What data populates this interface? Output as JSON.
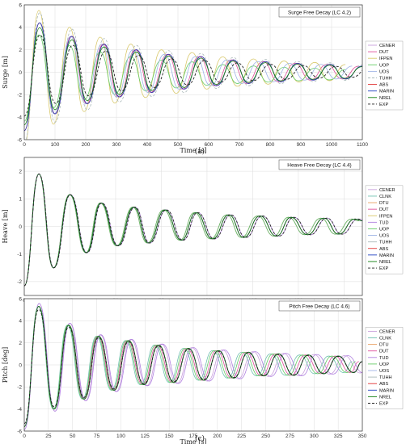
{
  "chart_data": [
    {
      "type": "line",
      "title": "Surge Free Decay (LC 4.2)",
      "xlabel": "Time [s]",
      "ylabel": "Surge [m]",
      "xlim": [
        0,
        1100
      ],
      "ylim": [
        -6,
        6
      ],
      "xticks": [
        "0",
        "100",
        "200",
        "300",
        "400",
        "500",
        "600",
        "700",
        "800",
        "900",
        "1000",
        "1100"
      ],
      "yticks": [
        "-6",
        "-4",
        "-2",
        "0",
        "2",
        "4",
        "6"
      ],
      "caption": "(a)",
      "grid": true,
      "legend_placement": "right",
      "peaks": {
        "x": [
          0,
          50,
          100,
          155,
          205,
          260,
          310,
          365,
          415,
          470,
          520,
          575,
          625,
          680,
          730,
          785,
          835,
          890,
          940,
          995,
          1045,
          1100
        ],
        "y": [
          -5.2,
          4.4,
          -3.7,
          3.2,
          -2.8,
          2.5,
          -2.2,
          2.0,
          -1.8,
          1.6,
          -1.5,
          1.4,
          -1.2,
          1.1,
          -1.0,
          0.95,
          -0.85,
          0.8,
          -0.7,
          0.7,
          -0.6,
          0.55
        ]
      },
      "series": [
        {
          "name": "CENER",
          "color": "#c9a0dc",
          "dash": "solid",
          "amp": 1.0,
          "period": 1.0,
          "offset": 0.0
        },
        {
          "name": "DUT",
          "color": "#e0509a",
          "dash": "solid",
          "amp": 1.0,
          "period": 0.99,
          "offset": 0.0
        },
        {
          "name": "IFPEN",
          "color": "#d8c86a",
          "dash": "solid",
          "amp": 1.25,
          "period": 0.95,
          "offset": 0.0
        },
        {
          "name": "UOP",
          "color": "#66cc66",
          "dash": "solid",
          "amp": 0.8,
          "period": 0.95,
          "offset": -0.2
        },
        {
          "name": "UOS",
          "color": "#9fb4e6",
          "dash": "solid",
          "amp": 1.0,
          "period": 0.97,
          "offset": 0.0
        },
        {
          "name": "TUHH",
          "color": "#a9b8b8",
          "dash": "dashed",
          "amp": 1.2,
          "period": 1.0,
          "offset": 0.0
        },
        {
          "name": "ABS",
          "color": "#e03030",
          "dash": "solid",
          "amp": 1.0,
          "period": 1.0,
          "offset": 0.0
        },
        {
          "name": "MARIN",
          "color": "#2040c0",
          "dash": "solid",
          "amp": 1.0,
          "period": 1.0,
          "offset": 0.0
        },
        {
          "name": "NREL",
          "color": "#108010",
          "dash": "solid",
          "amp": 0.9,
          "period": 1.0,
          "offset": 0.0
        },
        {
          "name": "EXP",
          "color": "#222222",
          "dash": "dashed",
          "amp": 0.75,
          "period": 1.02,
          "offset": 0.0
        }
      ]
    },
    {
      "type": "line",
      "title": "Heave Free Decay (LC 4.4)",
      "xlabel": "Time [s]",
      "ylabel": "Heave [m]",
      "xlim": [
        0,
        185
      ],
      "ylim": [
        -2.5,
        2.5
      ],
      "xticks": [
        "0",
        "25",
        "50",
        "75",
        "100",
        "125",
        "150",
        "175"
      ],
      "yticks": [
        "-2",
        "-1",
        "0",
        "1",
        "2"
      ],
      "caption": "(b)",
      "grid": true,
      "legend_placement": "right",
      "peaks": {
        "x": [
          0,
          8,
          16,
          25,
          34,
          42,
          51,
          60,
          68,
          77,
          86,
          94,
          103,
          112,
          120,
          129,
          138,
          146,
          155,
          164,
          172,
          181,
          185
        ],
        "y": [
          -2.15,
          1.9,
          -1.5,
          1.15,
          -0.95,
          0.85,
          -0.7,
          0.7,
          -0.6,
          0.6,
          -0.5,
          0.5,
          -0.45,
          0.42,
          -0.4,
          0.38,
          -0.35,
          0.33,
          -0.3,
          0.3,
          -0.28,
          0.27,
          0.2
        ]
      },
      "series": [
        {
          "name": "CENER",
          "color": "#c9a0dc",
          "dash": "solid",
          "amp": 1.0,
          "period": 1.0,
          "offset": 0.0
        },
        {
          "name": "CLNK",
          "color": "#70c0b0",
          "dash": "solid",
          "amp": 1.0,
          "period": 0.99,
          "offset": 0.0
        },
        {
          "name": "DTU",
          "color": "#e8a060",
          "dash": "solid",
          "amp": 1.0,
          "period": 1.0,
          "offset": 0.0
        },
        {
          "name": "DUT",
          "color": "#e0509a",
          "dash": "solid",
          "amp": 1.0,
          "period": 0.99,
          "offset": 0.0
        },
        {
          "name": "IFPEN",
          "color": "#d8c86a",
          "dash": "solid",
          "amp": 1.0,
          "period": 1.0,
          "offset": 0.0
        },
        {
          "name": "TUD",
          "color": "#b080e0",
          "dash": "solid",
          "amp": 1.0,
          "period": 1.01,
          "offset": 0.0
        },
        {
          "name": "UOP",
          "color": "#66cc66",
          "dash": "solid",
          "amp": 1.0,
          "period": 0.99,
          "offset": 0.0
        },
        {
          "name": "UOS",
          "color": "#9fb4e6",
          "dash": "solid",
          "amp": 1.0,
          "period": 1.0,
          "offset": 0.0
        },
        {
          "name": "TUHH",
          "color": "#a9b8b8",
          "dash": "solid",
          "amp": 1.0,
          "period": 1.0,
          "offset": 0.0
        },
        {
          "name": "ABS",
          "color": "#e03030",
          "dash": "solid",
          "amp": 1.0,
          "period": 1.0,
          "offset": 0.0
        },
        {
          "name": "MARIN",
          "color": "#2040c0",
          "dash": "solid",
          "amp": 1.0,
          "period": 1.0,
          "offset": 0.0
        },
        {
          "name": "NREL",
          "color": "#108010",
          "dash": "solid",
          "amp": 1.0,
          "period": 1.0,
          "offset": 0.0
        },
        {
          "name": "EXP",
          "color": "#222222",
          "dash": "dashed",
          "amp": 1.0,
          "period": 1.01,
          "offset": 0.0
        }
      ]
    },
    {
      "type": "line",
      "title": "Pitch Free Decay (LC 4.6)",
      "xlabel": "Time [s]",
      "ylabel": "Pitch [deg]",
      "xlim": [
        0,
        350
      ],
      "ylim": [
        -6,
        6
      ],
      "xticks": [
        "0",
        "25",
        "50",
        "75",
        "100",
        "125",
        "150",
        "175",
        "200",
        "225",
        "250",
        "275",
        "300",
        "325",
        "350"
      ],
      "yticks": [
        "-6",
        "-4",
        "-2",
        "0",
        "2",
        "4",
        "6"
      ],
      "caption": "(c)",
      "grid": true,
      "legend_placement": "right",
      "peaks": {
        "x": [
          0,
          15,
          31,
          46,
          62,
          77,
          93,
          108,
          124,
          139,
          155,
          170,
          186,
          201,
          217,
          232,
          248,
          263,
          279,
          294,
          310,
          325,
          341,
          350
        ],
        "y": [
          -5.6,
          5.3,
          -4.0,
          3.6,
          -3.1,
          2.6,
          -2.3,
          2.2,
          -1.8,
          1.8,
          -1.6,
          1.5,
          -1.4,
          1.3,
          -1.2,
          1.15,
          -1.0,
          1.0,
          -0.95,
          0.9,
          -0.8,
          0.8,
          -0.7,
          0.3
        ]
      },
      "series": [
        {
          "name": "CENER",
          "color": "#c9a0dc",
          "dash": "solid",
          "amp": 1.05,
          "period": 1.02,
          "offset": 0.0
        },
        {
          "name": "CLNK",
          "color": "#70c0b0",
          "dash": "solid",
          "amp": 1.0,
          "period": 0.97,
          "offset": 0.0
        },
        {
          "name": "DTU",
          "color": "#e8a060",
          "dash": "solid",
          "amp": 1.0,
          "period": 1.0,
          "offset": 0.0
        },
        {
          "name": "DUT",
          "color": "#e0509a",
          "dash": "solid",
          "amp": 1.0,
          "period": 0.99,
          "offset": 0.0
        },
        {
          "name": "TUD",
          "color": "#b080e0",
          "dash": "solid",
          "amp": 1.05,
          "period": 1.03,
          "offset": 0.0
        },
        {
          "name": "UOP",
          "color": "#66cc66",
          "dash": "solid",
          "amp": 1.0,
          "period": 0.98,
          "offset": 0.0
        },
        {
          "name": "UOS",
          "color": "#9fb4e6",
          "dash": "solid",
          "amp": 1.0,
          "period": 1.0,
          "offset": 0.0
        },
        {
          "name": "TUHH",
          "color": "#a9b8b8",
          "dash": "solid",
          "amp": 1.0,
          "period": 1.0,
          "offset": 0.0
        },
        {
          "name": "ABS",
          "color": "#e03030",
          "dash": "solid",
          "amp": 1.0,
          "period": 1.0,
          "offset": 0.0
        },
        {
          "name": "MARIN",
          "color": "#2040c0",
          "dash": "solid",
          "amp": 1.0,
          "period": 1.0,
          "offset": 0.0
        },
        {
          "name": "NREL",
          "color": "#108010",
          "dash": "solid",
          "amp": 1.0,
          "period": 1.0,
          "offset": 0.0
        },
        {
          "name": "EXP",
          "color": "#222222",
          "dash": "dashed",
          "amp": 0.95,
          "period": 1.0,
          "offset": 0.0
        }
      ]
    }
  ]
}
